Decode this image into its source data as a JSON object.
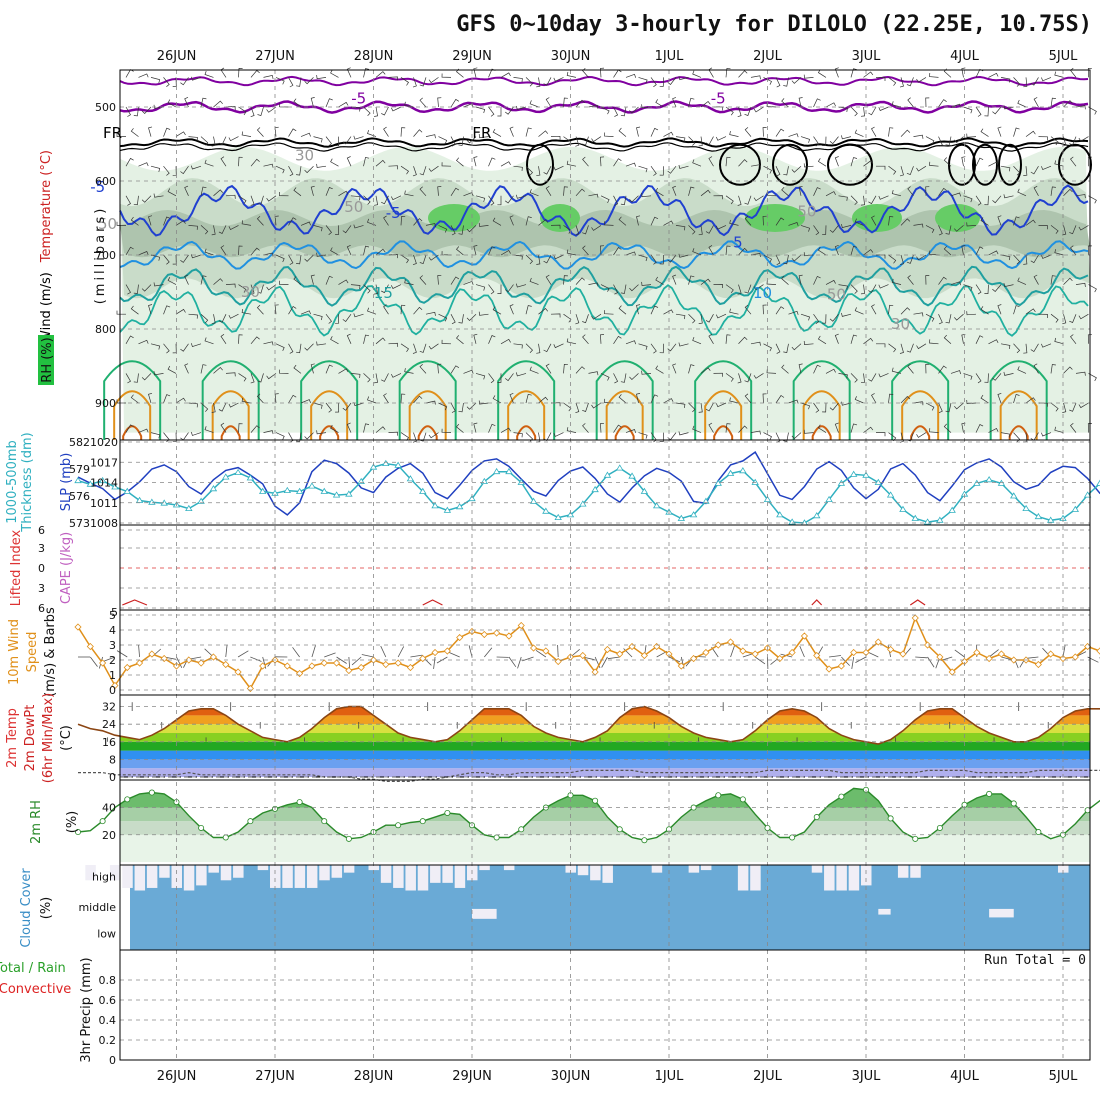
{
  "title": "GFS 0~10day 3-hourly for DILOLO (22.25E, 10.75S)",
  "dates": [
    "26JUN",
    "27JUN",
    "28JUN",
    "29JUN",
    "30JUN",
    "1JUL",
    "2JUL",
    "3JUL",
    "4JUL",
    "5JUL"
  ],
  "chart_data": [
    {
      "type": "contour",
      "panel": "upper-air",
      "ylabel_parts": [
        "Wind (m/s)",
        "Temperature (°C)",
        "RH (%)"
      ],
      "ylabel_colors": [
        "#000000",
        "#cc2222",
        "#22aa22"
      ],
      "yunit": "(millibars)",
      "yticks": [
        500,
        600,
        700,
        800,
        900
      ],
      "ylim": [
        450,
        950
      ],
      "contour_labels": [
        {
          "text": "-5",
          "day": 2.85,
          "p": 495,
          "color": "#8000a0"
        },
        {
          "text": "-5",
          "day": 6.5,
          "p": 495,
          "color": "#8000a0"
        },
        {
          "text": "FR",
          "day": 0.35,
          "p": 542,
          "color": "#000000"
        },
        {
          "text": "FR",
          "day": 4.1,
          "p": 542,
          "color": "#000000"
        },
        {
          "text": "-5",
          "day": 0.2,
          "p": 615,
          "color": "#2040d0"
        },
        {
          "text": "-5",
          "day": 3.2,
          "p": 650,
          "color": "#2040d0"
        },
        {
          "text": "5",
          "day": 6.7,
          "p": 690,
          "color": "#2040d0"
        },
        {
          "text": "15",
          "day": 3.1,
          "p": 758,
          "color": "#20a0a0"
        },
        {
          "text": "10",
          "day": 6.95,
          "p": 758,
          "color": "#2090e0"
        },
        {
          "text": "30",
          "day": 2.3,
          "p": 572,
          "color": "#999999"
        },
        {
          "text": "50",
          "day": 0.3,
          "p": 665,
          "color": "#999999"
        },
        {
          "text": "50",
          "day": 2.8,
          "p": 642,
          "color": "#999999"
        },
        {
          "text": "50",
          "day": 7.4,
          "p": 648,
          "color": "#999999"
        },
        {
          "text": "30",
          "day": 1.75,
          "p": 757,
          "color": "#999999"
        },
        {
          "text": "50",
          "day": 7.7,
          "p": 760,
          "color": "#999999"
        },
        {
          "text": "30",
          "day": 8.35,
          "p": 800,
          "color": "#999999"
        }
      ]
    },
    {
      "type": "line",
      "panel": "pressure",
      "ylabel_left": [
        "1000-500mb",
        "Thickness (dm)"
      ],
      "ylabel_right": "SLP (mb)",
      "yticks_left": [
        573,
        576,
        579,
        582
      ],
      "yticks_right": [
        1008,
        1011,
        1014,
        1017,
        1020
      ],
      "series": [
        {
          "name": "SLP (mb)",
          "color": "#2040c0",
          "values": [
            1014.8,
            1013.9,
            1013.1,
            1011.5,
            1012.6,
            1014.1,
            1016.0,
            1016.6,
            1015.6,
            1013.4,
            1012.3,
            1014.4,
            1015.8,
            1016.2,
            1015.1,
            1013.8,
            1010.5,
            1009.2,
            1011.0,
            1015.6,
            1017.3,
            1016.8,
            1015.4,
            1013.2,
            1012.5,
            1014.8,
            1016.1,
            1016.8,
            1015.4,
            1012.5,
            1011.6,
            1013.6,
            1015.8,
            1017.2,
            1017.5,
            1016.4,
            1014.5,
            1012.7,
            1012.0,
            1014.3,
            1015.7,
            1016.3,
            1014.6,
            1012.3,
            1011.1,
            1013.2,
            1015.0,
            1016.1,
            1015.5,
            1014.2,
            1011.2,
            1010.9,
            1014.3,
            1016.6,
            1017.2,
            1018.5,
            1015.3,
            1012.1,
            1011.5,
            1013.4,
            1016.0,
            1017.1,
            1015.8,
            1013.2,
            1011.6,
            1013.0,
            1016.0,
            1016.8,
            1015.1,
            1012.5,
            1011.3,
            1013.5,
            1015.9,
            1016.9,
            1017.5,
            1016.3,
            1014.1,
            1013.0,
            1013.6,
            1015.5,
            1016.4,
            1016.2,
            1014.6,
            1012.4,
            1011.6,
            1013.2,
            1015.4,
            1016.7,
            1016.2,
            1014.2,
            1012.6,
            1014.6,
            1014.8,
            1014.6,
            1015.0,
            1016.0
          ]
        },
        {
          "name": "1000-500mb Thickness (dm)",
          "color": "#30b0c0",
          "values": [
            577.7,
            577.3,
            577.7,
            577.0,
            576.5,
            575.5,
            575.3,
            575.2,
            575.0,
            574.6,
            575.4,
            576.8,
            578.1,
            578.6,
            578.0,
            576.5,
            576.3,
            576.6,
            576.5,
            577.1,
            576.5,
            576.1,
            576.2,
            577.6,
            579.2,
            579.6,
            579.4,
            577.9,
            576.5,
            574.9,
            574.4,
            574.8,
            575.7,
            577.6,
            578.7,
            578.7,
            577.5,
            575.4,
            574.3,
            573.6,
            573.9,
            575.1,
            576.7,
            578.3,
            579.1,
            578.2,
            576.5,
            574.9,
            574.2,
            573.5,
            573.9,
            575.4,
            577.4,
            578.5,
            578.8,
            577.5,
            575.6,
            573.9,
            573.1,
            573.0,
            573.8,
            575.6,
            577.4,
            578.4,
            578.3,
            577.5,
            576.1,
            574.5,
            573.5,
            573.1,
            573.3,
            574.4,
            576.2,
            577.4,
            577.8,
            577.4,
            576.0,
            574.6,
            573.7,
            573.3,
            573.5,
            574.5,
            576.1,
            577.4,
            577.6,
            576.6,
            575.2,
            574.0,
            573.5,
            573.3,
            573.3,
            573.5,
            574.0,
            574.2,
            573.8,
            573.6
          ]
        }
      ]
    },
    {
      "type": "line",
      "panel": "stability",
      "ylabel_left": "Lifted Index",
      "ylabel_right": "CAPE (J/kg)",
      "yticks": [
        "6",
        "3",
        "0",
        "3",
        "6"
      ],
      "yticks_right": [
        "5"
      ]
    },
    {
      "type": "line",
      "panel": "10m-wind",
      "ylabel": [
        "10m Wind",
        "Speed",
        "(m/s) & Barbs"
      ],
      "yticks": [
        0,
        1,
        2,
        3,
        4,
        5
      ],
      "series": [
        {
          "name": "10m Wind Speed",
          "color": "#e0901a",
          "values": [
            4.2,
            2.9,
            1.8,
            0.3,
            1.5,
            1.8,
            2.4,
            2.1,
            1.6,
            2.0,
            1.8,
            2.2,
            1.7,
            1.2,
            0.1,
            1.6,
            2.0,
            1.6,
            1.1,
            1.6,
            1.8,
            1.8,
            1.3,
            1.5,
            2.0,
            1.7,
            1.8,
            1.5,
            2.1,
            2.5,
            2.6,
            3.5,
            3.9,
            3.7,
            3.8,
            3.6,
            4.3,
            2.8,
            2.6,
            1.9,
            2.2,
            2.3,
            1.2,
            2.7,
            2.4,
            2.9,
            2.3,
            2.9,
            2.4,
            1.6,
            2.1,
            2.5,
            3.0,
            3.2,
            2.6,
            2.4,
            2.8,
            2.1,
            2.5,
            3.6,
            2.3,
            1.4,
            1.6,
            2.5,
            2.5,
            3.2,
            2.7,
            2.4,
            4.8,
            3.0,
            2.2,
            1.2,
            1.9,
            2.5,
            2.1,
            2.4,
            2.0,
            2.0,
            1.7,
            2.4,
            2.1,
            2.2,
            2.9,
            2.6,
            2.2,
            1.8,
            2.4,
            2.2,
            2.0,
            2.1,
            1.8,
            2.3,
            2.3,
            1.9,
            2.4,
            2.3
          ]
        }
      ]
    },
    {
      "type": "area",
      "panel": "2m-temp",
      "ylabel": [
        "2m Temp",
        "2m DewPt",
        "(6hr Min/Max)",
        "(°C)"
      ],
      "yticks": [
        0,
        8,
        16,
        24,
        32
      ],
      "series": [
        {
          "name": "2m Temp",
          "color": "#8b4513",
          "values": [
            24,
            22,
            21,
            19,
            18,
            17,
            19,
            22,
            26,
            30,
            31,
            31,
            28,
            24,
            21,
            18,
            17,
            16,
            18,
            22,
            27,
            31,
            32,
            32,
            28,
            24,
            20,
            18,
            17,
            16,
            17,
            21,
            26,
            31,
            31,
            31,
            28,
            23,
            20,
            18,
            17,
            16,
            18,
            21,
            27,
            31,
            32,
            30,
            27,
            23,
            20,
            18,
            17,
            16,
            17,
            21,
            26,
            30,
            31,
            30,
            27,
            22,
            19,
            17,
            16,
            15,
            17,
            21,
            26,
            30,
            31,
            31,
            27,
            23,
            20,
            18,
            16,
            16,
            18,
            22,
            27,
            30,
            31,
            31,
            28,
            23,
            19,
            17,
            16,
            15,
            17,
            21,
            27,
            31,
            33,
            32
          ]
        },
        {
          "name": "2m DewPt",
          "color": "#555555",
          "values": [
            2,
            2,
            2,
            1,
            1,
            1,
            1,
            1,
            1,
            2,
            1,
            1,
            1,
            1,
            1,
            1,
            1,
            1,
            1,
            1,
            0,
            0,
            0,
            -1,
            -1,
            -2,
            -2,
            -2,
            -1,
            -1,
            0,
            1,
            2,
            2,
            1,
            1,
            2,
            2,
            2,
            2,
            2,
            3,
            3,
            3,
            3,
            3,
            2,
            2,
            2,
            2,
            2,
            2,
            2,
            2,
            2,
            2,
            3,
            3,
            3,
            3,
            3,
            3,
            2,
            2,
            2,
            2,
            2,
            2,
            2,
            3,
            3,
            3,
            3,
            2,
            2,
            2,
            2,
            2,
            3,
            3,
            3,
            3,
            3,
            3,
            3,
            3,
            2,
            2,
            2,
            2,
            2,
            2,
            2,
            2,
            2,
            2
          ]
        }
      ]
    },
    {
      "type": "area",
      "panel": "2m-rh",
      "ylabel": "2m RH",
      "yunit": "(%)",
      "yticks": [
        20,
        40
      ],
      "series": [
        {
          "name": "2m RH",
          "color": "#2a8a2a",
          "values": [
            22,
            23,
            30,
            40,
            46,
            50,
            51,
            50,
            44,
            34,
            25,
            18,
            18,
            22,
            30,
            36,
            39,
            42,
            44,
            40,
            30,
            22,
            17,
            18,
            22,
            27,
            27,
            29,
            30,
            33,
            36,
            35,
            27,
            20,
            18,
            18,
            24,
            33,
            40,
            45,
            49,
            49,
            45,
            33,
            24,
            18,
            16,
            18,
            24,
            33,
            40,
            45,
            49,
            50,
            46,
            35,
            25,
            18,
            18,
            22,
            33,
            42,
            48,
            54,
            53,
            45,
            32,
            22,
            17,
            18,
            25,
            34,
            42,
            47,
            50,
            50,
            43,
            33,
            22,
            17,
            20,
            28,
            38,
            45,
            50,
            56,
            53,
            43,
            32,
            23,
            17,
            18,
            26,
            36,
            40,
            42
          ]
        }
      ]
    },
    {
      "type": "heatmap",
      "panel": "cloud-cover",
      "ylabel": "Cloud Cover",
      "yunit": "(%)",
      "rows": [
        "high",
        "middle",
        "low"
      ],
      "high_gap": [
        0,
        0.6,
        0,
        0.6,
        0.9,
        1,
        0.9,
        0.5,
        0.9,
        1,
        0.8,
        0.3,
        0.6,
        0.5,
        0,
        0.2,
        0.9,
        0.9,
        0.9,
        0.9,
        0.6,
        0.5,
        0.3,
        0,
        0.2,
        0.7,
        0.9,
        1,
        1,
        0.7,
        0.7,
        0.9,
        0.6,
        0.2,
        0,
        0.2,
        0,
        0,
        0,
        0,
        0.3,
        0.4,
        0.6,
        0.7,
        0,
        0,
        0,
        0.3,
        0,
        0,
        0.3,
        0.2,
        0,
        0,
        1,
        1,
        0,
        0,
        0,
        0,
        0.3,
        1,
        1,
        1,
        0.8,
        0,
        0,
        0.5,
        0.5,
        0,
        0,
        0,
        0,
        0,
        0,
        0,
        0,
        0,
        0,
        0,
        0.3,
        0,
        0,
        0,
        0.3,
        0,
        0,
        0,
        0,
        0.3,
        0.4,
        0,
        0,
        0.2,
        0.3,
        0
      ],
      "middle_gap": [
        {
          "from": 32,
          "to": 34,
          "amount": 0.35
        },
        {
          "from": 65,
          "to": 66,
          "amount": 0.2
        },
        {
          "from": 74,
          "to": 76,
          "amount": 0.3
        }
      ]
    },
    {
      "type": "bar",
      "panel": "precip",
      "ylabel_parts": [
        "Total / Rain",
        "Convective",
        "3hr Precip (mm)"
      ],
      "ylabel_colors": [
        "#2aa02a",
        "#dd2222",
        "#111111"
      ],
      "yticks": [
        0,
        0.2,
        0.4,
        0.6,
        0.8
      ],
      "ylim": [
        0,
        1
      ],
      "values": [],
      "annotation": "Run Total = 0"
    }
  ],
  "colors": {
    "rh_legend": "#22c040",
    "cloud": "#6aaad6",
    "cloud_gap": "#f0eef6",
    "grid": "#aaaaaa"
  }
}
